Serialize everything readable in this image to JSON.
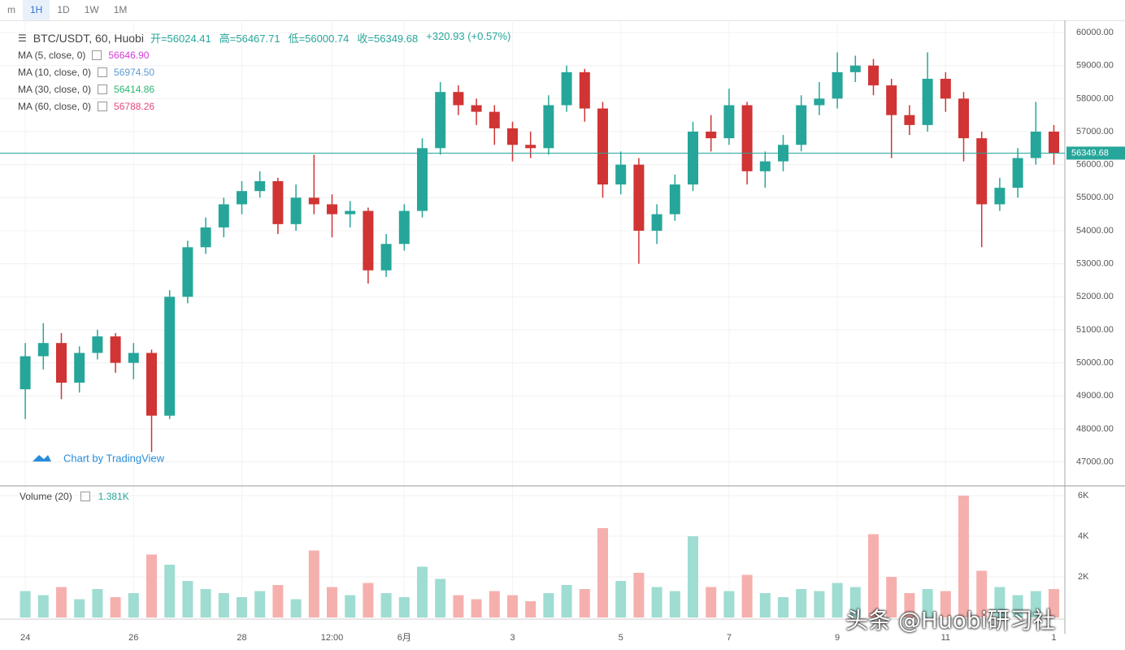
{
  "toolbar": {
    "intervals": [
      "m",
      "1H",
      "1D",
      "1W",
      "1M"
    ]
  },
  "chart_data": {
    "type": "candlestick",
    "title": "BTC/USDT, 60, Huobi",
    "ohlc_labels": [
      "开=56024.41",
      "高=56467.71",
      "低=56000.74",
      "收=56349.68",
      "+320.93 (+0.57%)"
    ],
    "indicators": [
      {
        "name": "MA (5, close, 0)",
        "value": "56646.90",
        "color": "#d63cd6"
      },
      {
        "name": "MA (10, close, 0)",
        "value": "56974.50",
        "color": "#5b9bd5"
      },
      {
        "name": "MA (30, close, 0)",
        "value": "56414.86",
        "color": "#2bb673"
      },
      {
        "name": "MA (60, close, 0)",
        "value": "56788.26",
        "color": "#e64980"
      }
    ],
    "categories": [
      "24",
      null,
      null,
      null,
      null,
      null,
      "26",
      null,
      null,
      null,
      null,
      null,
      "28",
      null,
      null,
      null,
      null,
      "12:00",
      null,
      null,
      null,
      "6月",
      null,
      null,
      null,
      null,
      null,
      "3",
      null,
      null,
      null,
      null,
      null,
      "5",
      null,
      null,
      null,
      null,
      null,
      "7",
      null,
      null,
      null,
      null,
      null,
      "9",
      null,
      null,
      null,
      null,
      null,
      "11",
      null,
      null,
      null,
      null,
      null,
      "1"
    ],
    "open": [
      49200,
      50200,
      50600,
      49400,
      50300,
      50800,
      50000,
      50300,
      48400,
      52000,
      53500,
      54100,
      54800,
      55200,
      55500,
      54200,
      55000,
      54800,
      54500,
      54600,
      52800,
      53600,
      54600,
      56500,
      58200,
      57800,
      57600,
      57100,
      56600,
      56500,
      57800,
      58800,
      57700,
      55400,
      56000,
      54000,
      54500,
      55400,
      57000,
      56800,
      57800,
      55800,
      56100,
      56600,
      57800,
      58000,
      58800,
      59000,
      58400,
      57500,
      57200,
      58600,
      58000,
      56800,
      54800,
      55300,
      56200,
      57000
    ],
    "high": [
      50600,
      51200,
      50900,
      50500,
      51000,
      50900,
      50600,
      50400,
      52200,
      53700,
      54400,
      55000,
      55500,
      55800,
      55600,
      55400,
      56300,
      55100,
      54900,
      54700,
      53900,
      54800,
      56800,
      58500,
      58400,
      58000,
      57800,
      57300,
      57000,
      58100,
      59000,
      58900,
      57900,
      56400,
      56200,
      54800,
      55700,
      57300,
      57500,
      58300,
      57900,
      56400,
      56900,
      58100,
      58500,
      59400,
      59300,
      59200,
      58600,
      57800,
      59400,
      58800,
      58200,
      57000,
      55600,
      56500,
      57900,
      57200
    ],
    "low": [
      48300,
      49800,
      48900,
      49100,
      50100,
      49700,
      49500,
      47300,
      48300,
      51800,
      53300,
      53800,
      54500,
      55000,
      53900,
      54000,
      54500,
      53800,
      54100,
      52400,
      52600,
      53400,
      54400,
      56300,
      57500,
      57200,
      56600,
      56100,
      56200,
      56300,
      57600,
      57300,
      55000,
      55100,
      53000,
      53600,
      54300,
      55200,
      56400,
      56600,
      55400,
      55300,
      55800,
      56400,
      57500,
      57700,
      58500,
      58100,
      56200,
      56900,
      57000,
      57600,
      56100,
      53500,
      54600,
      55000,
      56000,
      56000
    ],
    "close": [
      50200,
      50600,
      49400,
      50300,
      50800,
      50000,
      50300,
      48400,
      52000,
      53500,
      54100,
      54800,
      55200,
      55500,
      54200,
      55000,
      54800,
      54500,
      54600,
      52800,
      53600,
      54600,
      56500,
      58200,
      57800,
      57600,
      57100,
      56600,
      56500,
      57800,
      58800,
      57700,
      55400,
      56000,
      54000,
      54500,
      55400,
      57000,
      56800,
      57800,
      55800,
      56100,
      56600,
      57800,
      58000,
      58800,
      59000,
      58400,
      57500,
      57200,
      58600,
      58000,
      56800,
      54800,
      55300,
      56200,
      57000,
      56350
    ],
    "up_color": "#26a69a",
    "down_color": "#d03434",
    "ylim": [
      46300,
      60370
    ],
    "yticks": [
      {
        "value": 47000,
        "label": "47000.00"
      },
      {
        "value": 48000,
        "label": "48000.00"
      },
      {
        "value": 49000,
        "label": "49000.00"
      },
      {
        "value": 50000,
        "label": "50000.00"
      },
      {
        "value": 51000,
        "label": "51000.00"
      },
      {
        "value": 52000,
        "label": "52000.00"
      },
      {
        "value": 53000,
        "label": "53000.00"
      },
      {
        "value": 54000,
        "label": "54000.00"
      },
      {
        "value": 55000,
        "label": "55000.00"
      },
      {
        "value": 56000,
        "label": "56000.00"
      },
      {
        "value": 57000,
        "label": "57000.00"
      },
      {
        "value": 58000,
        "label": "58000.00"
      },
      {
        "value": 59000,
        "label": "59000.00"
      },
      {
        "value": 60000,
        "label": "60000.00"
      }
    ],
    "grid": true,
    "last_price": {
      "value": 56349.68,
      "label": "56349.68"
    },
    "watermark": "Chart by TradingView",
    "volume": {
      "title": "Volume (20)",
      "last": "1.381K",
      "up_color": "#9fdcd2",
      "down_color": "#f5b0ae",
      "values": [
        1300,
        1100,
        1500,
        900,
        1400,
        1000,
        1200,
        3100,
        2600,
        1800,
        1400,
        1200,
        1000,
        1300,
        1600,
        900,
        3300,
        1500,
        1100,
        1700,
        1200,
        1000,
        2500,
        1900,
        1100,
        900,
        1300,
        1100,
        800,
        1200,
        1600,
        1400,
        4400,
        1800,
        2200,
        1500,
        1300,
        4000,
        1500,
        1300,
        2100,
        1200,
        1000,
        1400,
        1300,
        1700,
        1500,
        4100,
        2000,
        1200,
        1400,
        1300,
        6000,
        2300,
        1500,
        1100,
        1300,
        1400
      ],
      "ylim": [
        0,
        6400
      ],
      "yticks": [
        {
          "value": 2000,
          "label": "2K"
        },
        {
          "value": 4000,
          "label": "4K"
        },
        {
          "value": 6000,
          "label": "6K"
        }
      ]
    }
  },
  "footer_watermark": "头条 @Huobi研习社"
}
